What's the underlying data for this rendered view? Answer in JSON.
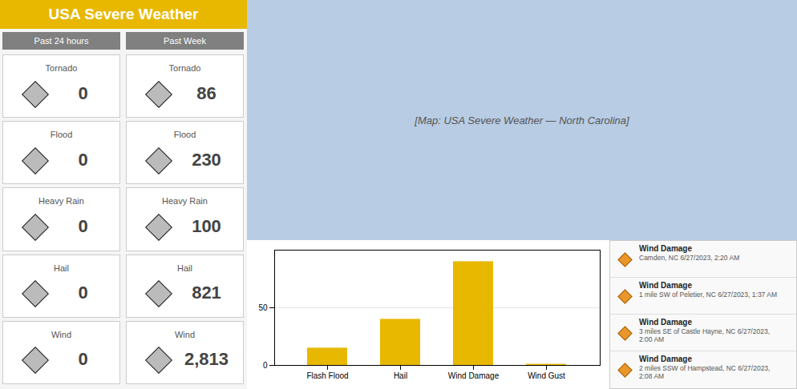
{
  "chart_data": {
    "type": "bar",
    "title": "USA Severe Weather",
    "categories": [
      "Flash Flood",
      "Hail",
      "Wind Damage",
      "Wind Gust"
    ],
    "values": [
      15,
      40,
      90,
      1
    ],
    "color": "#E8B800",
    "ylim": [
      0,
      100
    ],
    "yticks": [
      0,
      50
    ],
    "grid": true,
    "annotations": [
      [
        "Past 24 hours",
        "Past Week"
      ],
      [
        "Tornado",
        "0",
        "Tornado",
        "86"
      ],
      [
        "Flood",
        "0",
        "Flood",
        "230"
      ],
      [
        "Heavy Rain",
        "0",
        "Heavy Rain",
        "100"
      ],
      [
        "Hail",
        "0",
        "Hail",
        "821"
      ],
      [
        "Wind",
        "0",
        "Wind",
        "2,813"
      ],
      [
        "[Map: USA Severe Weather — North Carolina]"
      ],
      [
        "Wind Damage",
        "Camden, NC 6/27/2023, 2:20 AM"
      ],
      [
        "Wind Damage",
        "1 mile SW of Peletier, NC 6/27/2023, 1:37 AM"
      ],
      [
        "Wind Damage",
        "3 miles SE of Castle Hayne, NC 6/27/2023,\n2:00 AM"
      ],
      [
        "Wind Damage",
        "2 miles SSW of Hampstead, NC 6/27/2023,\n2:08 AM"
      ]
    ]
  }
}
